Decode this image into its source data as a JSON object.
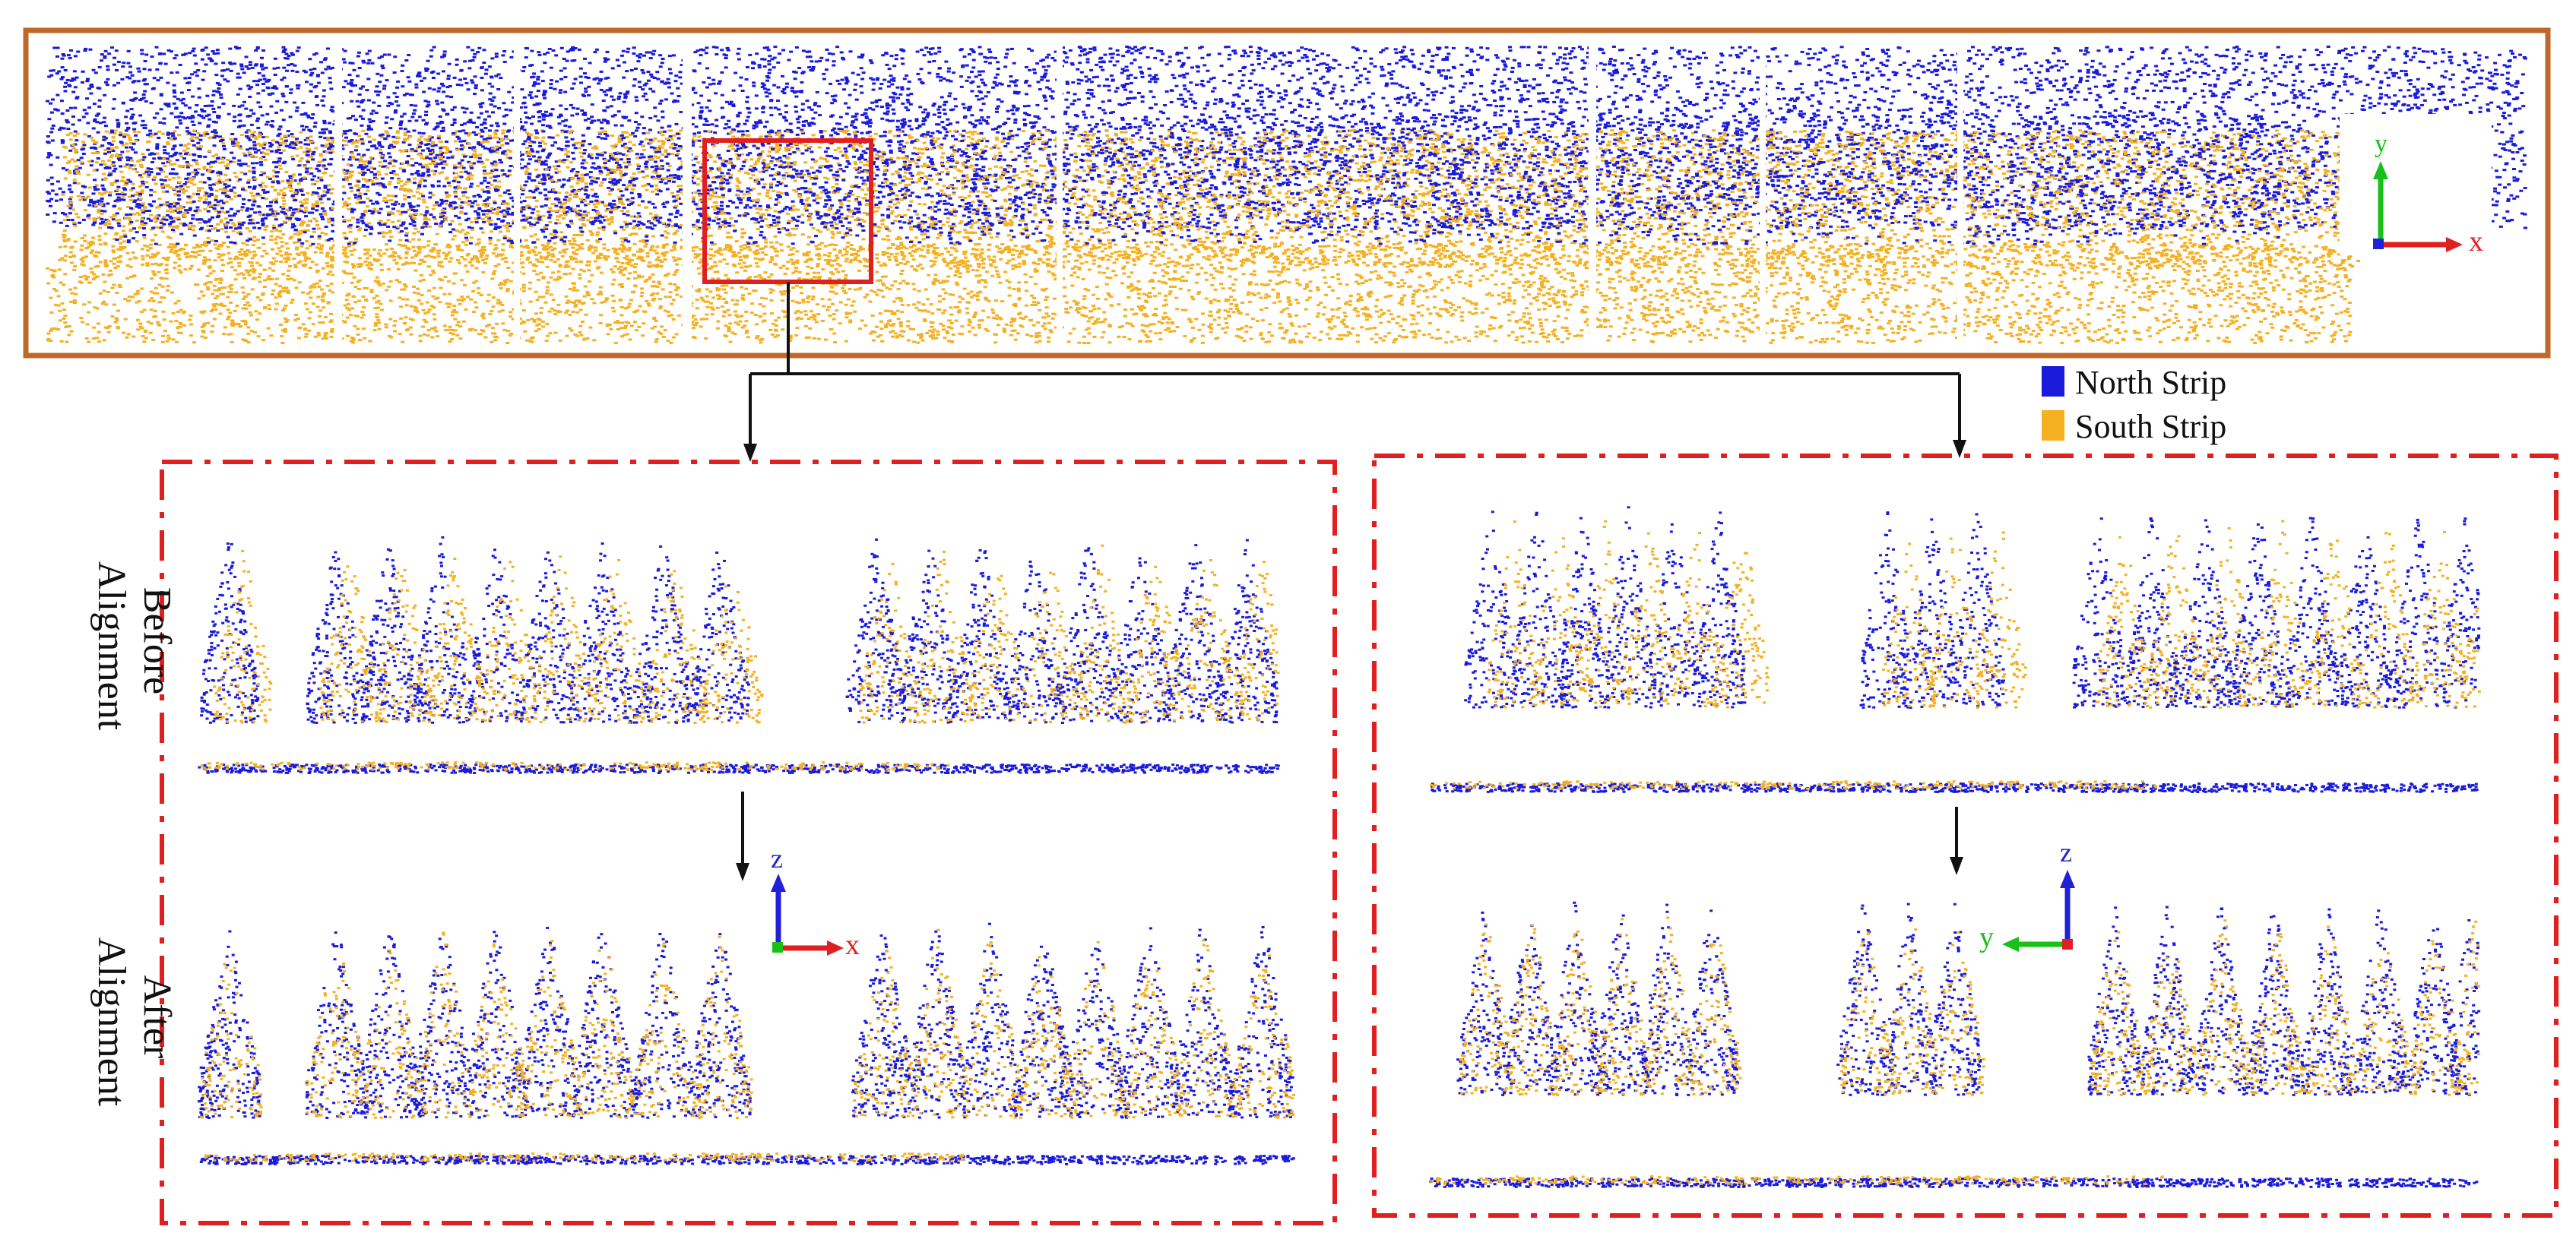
{
  "legend": {
    "items": [
      {
        "label": "North Strip",
        "color": "#1a1adb"
      },
      {
        "label": "South Strip",
        "color": "#f4b021"
      }
    ]
  },
  "row_labels": {
    "before": [
      "Before",
      "Alignment"
    ],
    "after": [
      "After",
      "Alignment"
    ]
  },
  "axes": {
    "overview": {
      "vertical": "y",
      "horizontal": "x"
    },
    "left_detail": {
      "vertical": "z",
      "horizontal": "x"
    },
    "right_detail": {
      "vertical": "z",
      "horizontal": "y"
    }
  },
  "colors": {
    "north": "#1a1adb",
    "south": "#f4b021",
    "overview_border": "#c0682a",
    "detail_border": "#e02020",
    "zoom_box": "#e02020",
    "arrow": "#111111",
    "axis_x": "#e02020",
    "axis_y": "#18c018",
    "axis_z": "#2020d8"
  }
}
